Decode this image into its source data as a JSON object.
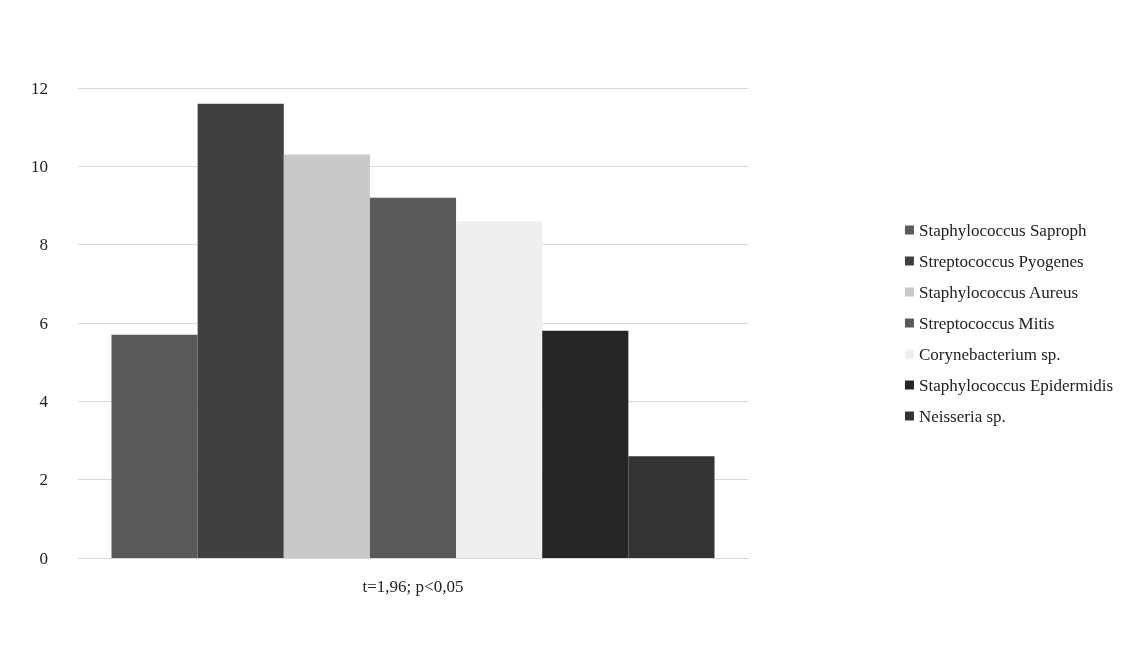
{
  "chart_data": {
    "type": "bar",
    "categories": [
      "t=1,96; p<0,05"
    ],
    "series": [
      {
        "name": "Staphylococcus Saproph",
        "color": "#595959",
        "values": [
          5.7
        ]
      },
      {
        "name": "Streptococcus Pyogenes",
        "color": "#404040",
        "values": [
          11.6
        ]
      },
      {
        "name": "Staphylococcus Aureus",
        "color": "#c8c8c8",
        "values": [
          10.3
        ]
      },
      {
        "name": "Streptococcus Mitis",
        "color": "#5a5a5a",
        "values": [
          9.2
        ]
      },
      {
        "name": "Corynebacterium sp.",
        "color": "#efefef",
        "values": [
          8.6
        ]
      },
      {
        "name": "Staphylococcus Epidermidis",
        "color": "#262626",
        "values": [
          5.8
        ]
      },
      {
        "name": "Neisseria sp.",
        "color": "#333333",
        "values": [
          2.6
        ]
      }
    ],
    "ylim": [
      0,
      12
    ],
    "yticks": [
      0,
      2,
      4,
      6,
      8,
      10,
      12
    ],
    "grid": "y",
    "legend": "right"
  }
}
